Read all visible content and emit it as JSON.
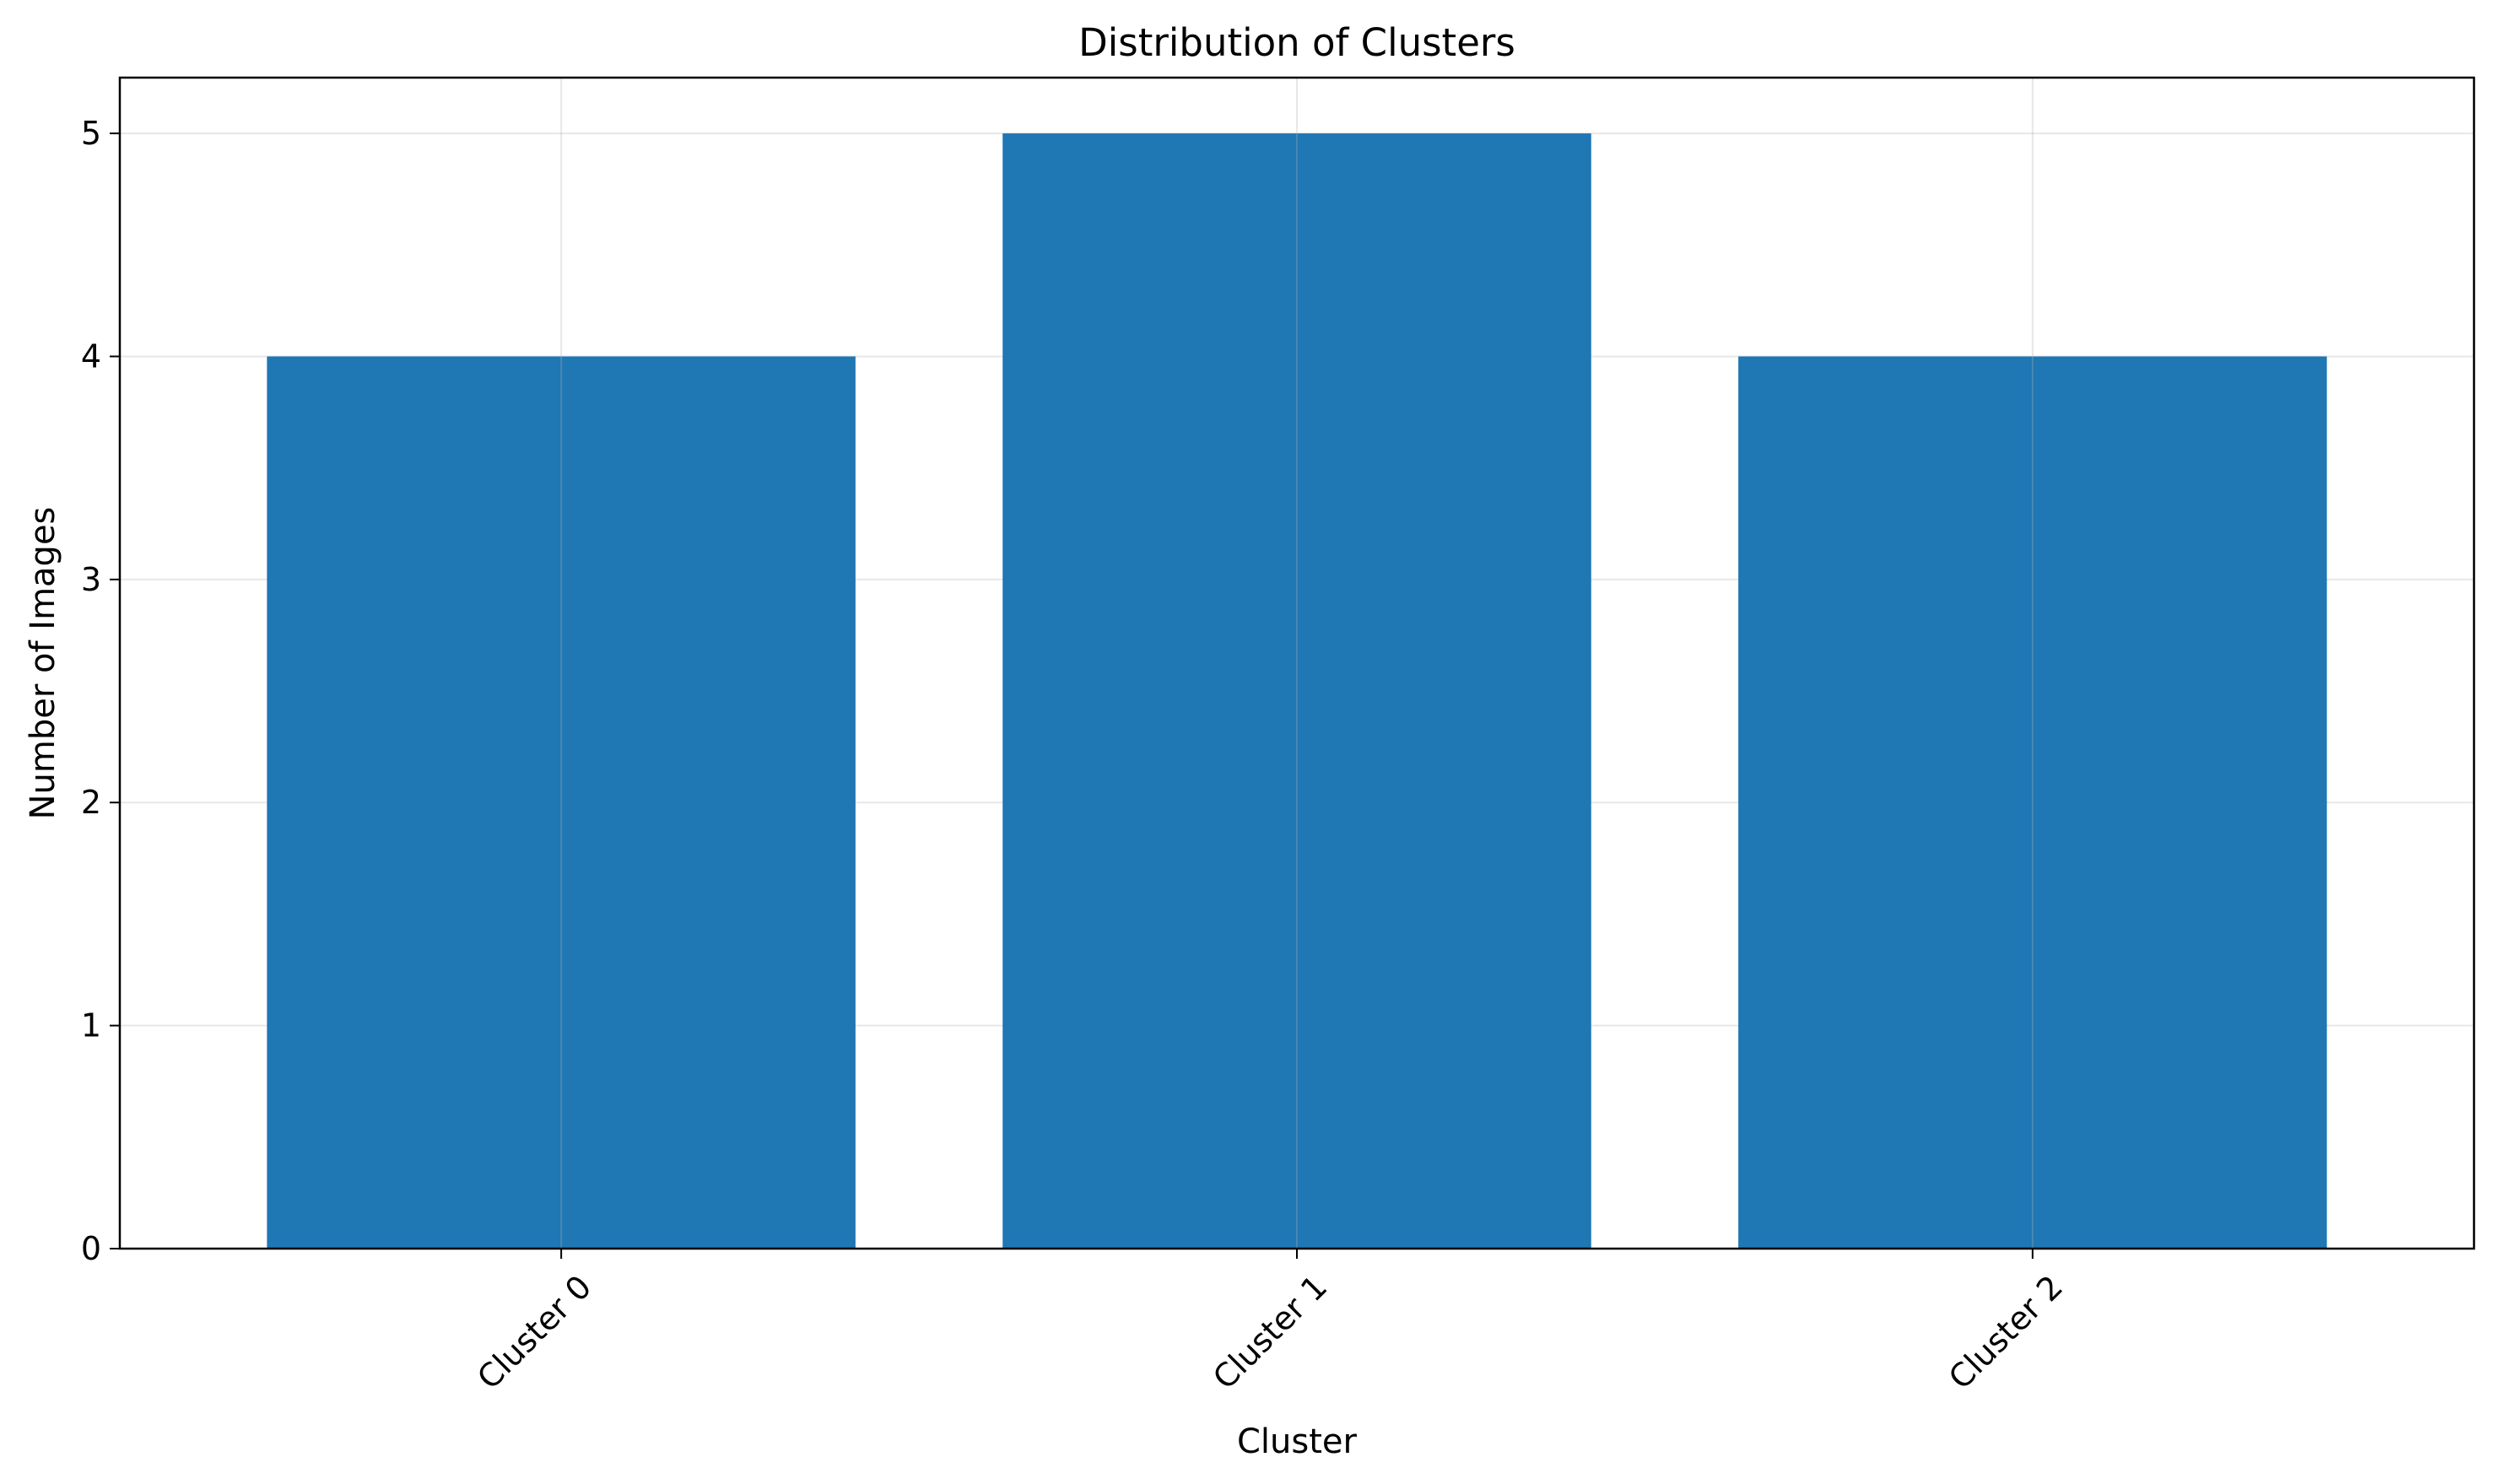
{
  "chart_data": {
    "type": "bar",
    "title": "Distribution of Clusters",
    "xlabel": "Cluster",
    "ylabel": "Number of Images",
    "categories": [
      "Cluster 0",
      "Cluster 1",
      "Cluster 2"
    ],
    "values": [
      4,
      5,
      4
    ],
    "ylim": [
      0,
      5.25
    ],
    "yticks": [
      "0",
      "1",
      "2",
      "3",
      "4",
      "5"
    ],
    "xtick_rotation_deg": 45,
    "grid": true,
    "legend": "none",
    "colors": {
      "bar": "#1f77b4",
      "axes": "#000000",
      "background": "#ffffff"
    }
  }
}
